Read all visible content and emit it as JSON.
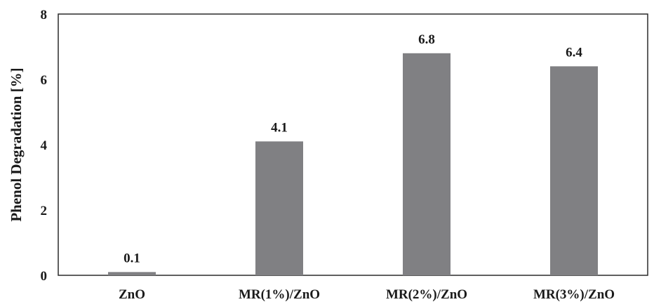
{
  "chart_data": {
    "type": "bar",
    "categories": [
      "ZnO",
      "MR(1%)/ZnO",
      "MR(2%)/ZnO",
      "MR(3%)/ZnO"
    ],
    "values": [
      0.1,
      4.1,
      6.8,
      6.4
    ],
    "data_labels": [
      "0.1",
      "4.1",
      "6.8",
      "6.4"
    ],
    "ylabel": "Phenol Degradation [%]",
    "xlabel": "",
    "ylim": [
      0,
      8
    ],
    "yticks": [
      "0",
      "2",
      "4",
      "6",
      "8"
    ],
    "grid": false,
    "legend": "none",
    "bar_color": "#808083",
    "frame_color": "#2a2a2a"
  }
}
